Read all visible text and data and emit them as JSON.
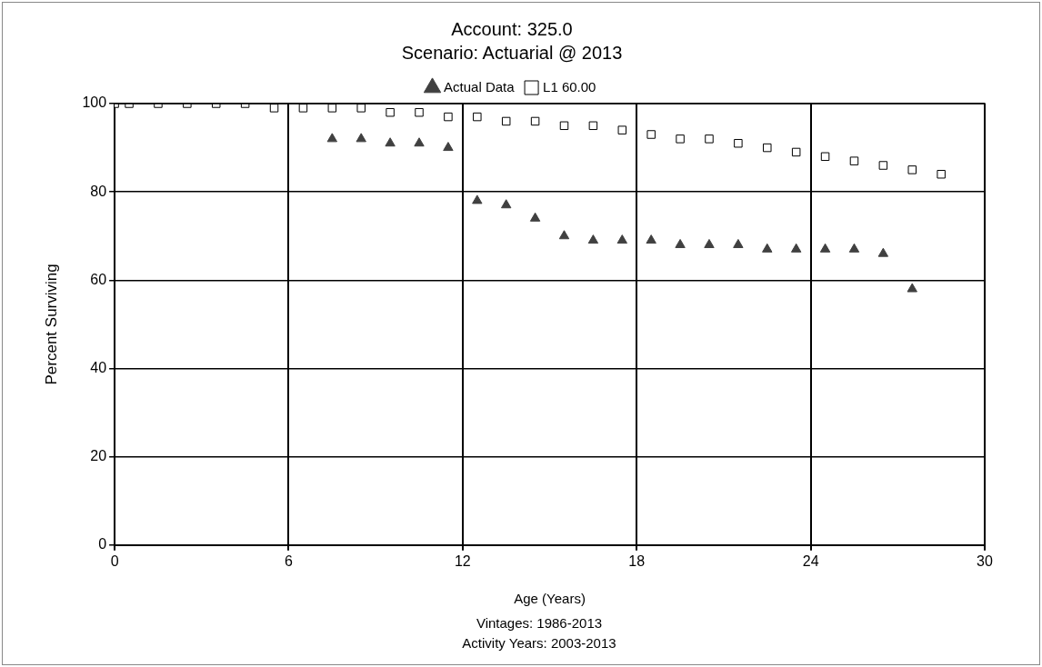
{
  "chart_data": {
    "type": "scatter",
    "title": "Account: 325.0",
    "subtitle": "Scenario: Actuarial @ 2013",
    "xlabel": "Age (Years)",
    "ylabel": "Percent Surviving",
    "annotations": [
      "Vintages: 1986-2013",
      "Activity Years: 2003-2013"
    ],
    "xlim": [
      0,
      30
    ],
    "xticks": [
      0,
      6,
      12,
      18,
      24,
      30
    ],
    "ylim": [
      0,
      100
    ],
    "yticks": [
      0,
      20,
      40,
      60,
      80,
      100
    ],
    "grid": true,
    "legend": "top",
    "series": [
      {
        "name": "Actual Data",
        "color": "#404040",
        "marker": "triangle",
        "x": [
          7.5,
          8.5,
          9.5,
          10.5,
          11.5,
          12.5,
          13.5,
          14.5,
          15.5,
          16.5,
          17.5,
          18.5,
          19.5,
          20.5,
          21.5,
          22.5,
          23.5,
          24.5,
          25.5,
          26.5,
          27.5
        ],
        "values": [
          92,
          92,
          91,
          91,
          90,
          78,
          77,
          74,
          70,
          69,
          69,
          69,
          68,
          68,
          68,
          67,
          67,
          67,
          67,
          66,
          58
        ]
      },
      {
        "name": "L1 60.00",
        "color": "#000000",
        "marker": "square",
        "x": [
          0,
          0.5,
          1.5,
          2.5,
          3.5,
          4.5,
          5.5,
          6.5,
          7.5,
          8.5,
          9.5,
          10.5,
          11.5,
          12.5,
          13.5,
          14.5,
          15.5,
          16.5,
          17.5,
          18.5,
          19.5,
          20.5,
          21.5,
          22.5,
          23.5,
          24.5,
          25.5,
          26.5,
          27.5,
          28.5
        ],
        "values": [
          100,
          100,
          100,
          100,
          100,
          100,
          99,
          99,
          99,
          99,
          98,
          98,
          97,
          97,
          96,
          96,
          95,
          95,
          94,
          93,
          92,
          92,
          91,
          90,
          89,
          88,
          87,
          86,
          85,
          84
        ]
      }
    ]
  }
}
